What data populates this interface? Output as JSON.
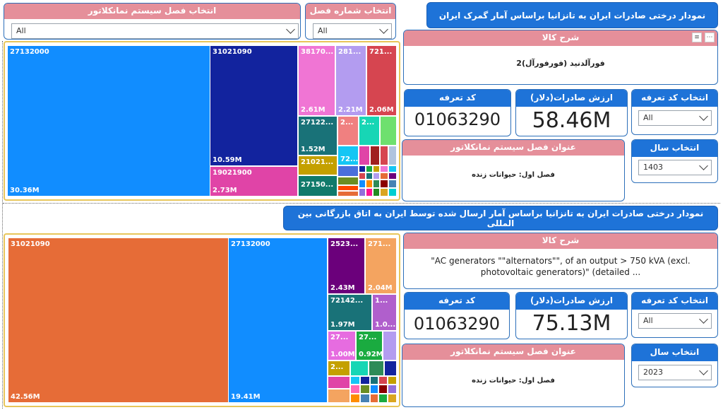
{
  "top": {
    "title": "نمودار درختی صادرات ایران به تانزانیا براساس آمار گمرک ایران",
    "filter_chapter_system": {
      "label": "انتخاب فصل سیستم نمانکلاتور",
      "value": "All"
    },
    "filter_chapter_number": {
      "label": "انتخاب شماره فصل",
      "value": "All"
    },
    "goods_desc": {
      "label": "شرح کالا",
      "value": "فورآلدنید (فورفورآل)2"
    },
    "tariff_code": {
      "label": "کد تعرفه",
      "value": "01063290"
    },
    "export_value": {
      "label": "ارزش صادرات(دلار)",
      "value": "58.46M"
    },
    "select_tariff": {
      "label": "انتخاب کد تعرفه",
      "value": "All"
    },
    "chapter_title": {
      "label": "عنوان فصل سیستم نمانکلاتور",
      "value": "فصل اول: حیوانات زنده"
    },
    "select_year": {
      "label": "انتخاب سال",
      "value": "1403"
    },
    "tiles": [
      {
        "code": "27132000",
        "value": "30.36M",
        "color": "#118dff"
      },
      {
        "code": "31021090",
        "value": "10.59M",
        "color": "#12239e"
      },
      {
        "code": "19021900",
        "value": "2.73M",
        "color": "#e044a7"
      },
      {
        "code": "38170...",
        "value": "2.61M",
        "color": "#e66c37"
      },
      {
        "code": "281...",
        "value": "2.21M",
        "color": "#a66999"
      },
      {
        "code": "721...",
        "value": "2.06M",
        "color": "#d64550"
      },
      {
        "code": "27122...",
        "value": "1.52M",
        "color": "#197278"
      },
      {
        "code": "2...",
        "value": "",
        "color": "#f08080"
      },
      {
        "code": "2...",
        "value": "",
        "color": "#1aab40"
      },
      {
        "code": "21021...",
        "value": "",
        "color": "#c4a000"
      },
      {
        "code": "72...",
        "value": "",
        "color": "#15c6f4"
      },
      {
        "code": "27150...",
        "value": "",
        "color": "#107a6b"
      }
    ]
  },
  "bottom": {
    "title": "نمودار درختی صادرات ایران به  تانزانیا براساس آمار ارسال شده توسط ایران به اتاق بازرگانی بین المللی",
    "goods_desc": {
      "label": "شرح کالا",
      "value": "\"AC generators \"\"alternators\"\", of an output > 750 kVA (excl. photovoltaic generators)\" (detailed ..."
    },
    "tariff_code": {
      "label": "کد تعرفه",
      "value": "01063290"
    },
    "export_value": {
      "label": "ارزش صادرات(دلار)",
      "value": "75.13M"
    },
    "select_tariff": {
      "label": "انتخاب کد تعرفه",
      "value": "All"
    },
    "chapter_title": {
      "label": "عنوان فصل سیستم نمانکلاتور",
      "value": "فصل اول: حیوانات زنده"
    },
    "select_year": {
      "label": "انتخاب سال",
      "value": "2023"
    },
    "tiles": [
      {
        "code": "31021090",
        "value": "42.56M",
        "color": "#e66c37"
      },
      {
        "code": "27132000",
        "value": "19.41M",
        "color": "#118dff"
      },
      {
        "code": "2523...",
        "value": "2.43M",
        "color": "#6b007b"
      },
      {
        "code": "271...",
        "value": "2.04M",
        "color": "#f4a460"
      },
      {
        "code": "72142...",
        "value": "1.97M",
        "color": "#197278"
      },
      {
        "code": "1...",
        "value": "1.0...",
        "color": "#b05fcc"
      },
      {
        "code": "27...",
        "value": "1.00M",
        "color": "#e66ce0"
      },
      {
        "code": "27...",
        "value": "0.92M",
        "color": "#1aab40"
      },
      {
        "code": "2...",
        "value": "",
        "color": "#c4a000"
      }
    ]
  }
}
